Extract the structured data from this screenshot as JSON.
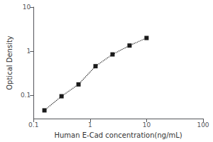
{
  "chart_data": {
    "type": "line",
    "xlabel": "Human E-Cad concentration(ng/mL)",
    "ylabel": "Optical Density",
    "x": [
      0.156,
      0.313,
      0.625,
      1.25,
      2.5,
      5.0,
      10.0
    ],
    "values": [
      0.046,
      0.096,
      0.178,
      0.46,
      0.85,
      1.35,
      2.0
    ],
    "xlim": [
      0.1,
      100
    ],
    "ylim": [
      0.03,
      10
    ],
    "xticks": [
      0.1,
      1,
      10,
      100
    ],
    "yticks": [
      0.1,
      1,
      10
    ],
    "log": true,
    "grid": false,
    "marker": "square",
    "line_style": "dotted",
    "color": "#1a1a1a"
  }
}
